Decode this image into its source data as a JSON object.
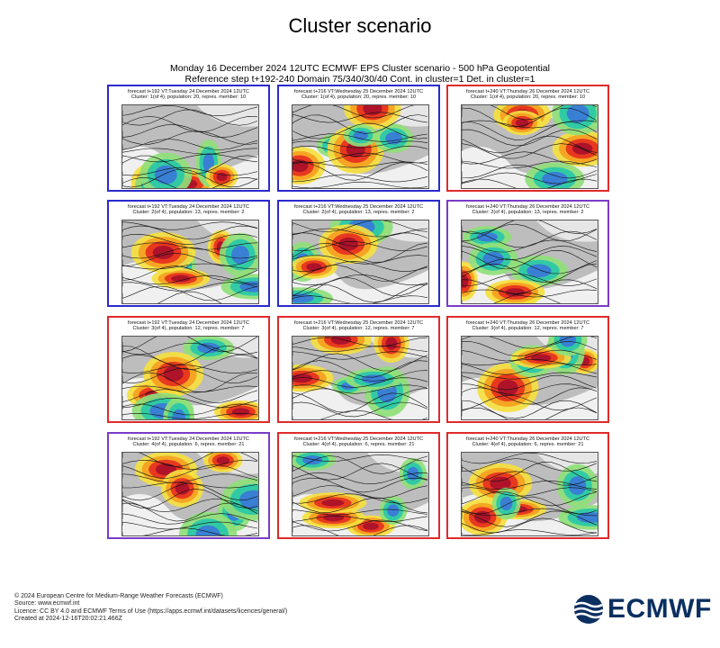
{
  "title": "Cluster scenario",
  "header": {
    "line1": "Monday 16 December 2024 12UTC ECMWF EPS Cluster scenario - 500 hPa Geopotential",
    "line2": "Reference step t+192-240 Domain 75/340/30/40 Cont. in cluster=1 Det. in cluster=1"
  },
  "colors": {
    "frame_blue": "#2a2ad0",
    "frame_red": "#e02a2a",
    "frame_purple": "#7a3cc8",
    "anomaly_strong_pos": "#a8102a",
    "anomaly_pos": "#e63020",
    "anomaly_weak_pos": "#f5a020",
    "anomaly_faint_pos": "#f5e040",
    "anomaly_faint_neg": "#8fe07a",
    "anomaly_neg": "#28c8a8",
    "anomaly_strong_neg": "#3a78d8",
    "land": "#9a9a9a"
  },
  "panels": [
    {
      "line1": "forecast t+192 VT:Tuesday 24 December 2024 12UTC",
      "line2": "Cluster: 1(of 4), population: 20, repres. member: 10",
      "frame": "blue"
    },
    {
      "line1": "forecast t+216 VT:Wednesday 25 December 2024 12UTC",
      "line2": "Cluster: 1(of 4), population: 20, repres. member: 10",
      "frame": "blue"
    },
    {
      "line1": "forecast t+240 VT:Thursday 26 December 2024 12UTC",
      "line2": "Cluster: 1(of 4), population: 20, repres. member: 10",
      "frame": "red"
    },
    {
      "line1": "forecast t+192 VT:Tuesday 24 December 2024 12UTC",
      "line2": "Cluster: 2(of 4), population: 13, repres. member: 2",
      "frame": "blue"
    },
    {
      "line1": "forecast t+216 VT:Wednesday 25 December 2024 12UTC",
      "line2": "Cluster: 2(of 4), population: 13, repres. member: 2",
      "frame": "blue"
    },
    {
      "line1": "forecast t+240 VT:Thursday 26 December 2024 12UTC",
      "line2": "Cluster: 2(of 4), population: 13, repres. member: 2",
      "frame": "purple"
    },
    {
      "line1": "forecast t+192 VT:Tuesday 24 December 2024 12UTC",
      "line2": "Cluster: 3(of 4), population: 12, repres. member: 7",
      "frame": "red"
    },
    {
      "line1": "forecast t+216 VT:Wednesday 25 December 2024 12UTC",
      "line2": "Cluster: 3(of 4), population: 12, repres. member: 7",
      "frame": "red"
    },
    {
      "line1": "forecast t+240 VT:Thursday 26 December 2024 12UTC",
      "line2": "Cluster: 3(of 4), population: 12, repres. member: 7",
      "frame": "red"
    },
    {
      "line1": "forecast t+192 VT:Tuesday 24 December 2024 12UTC",
      "line2": "Cluster: 4(of 4), population: 6, repres. member: 21",
      "frame": "purple"
    },
    {
      "line1": "forecast t+216 VT:Wednesday 25 December 2024 12UTC",
      "line2": "Cluster: 4(of 4), population: 6, repres. member: 21",
      "frame": "red"
    },
    {
      "line1": "forecast t+240 VT:Thursday 26 December 2024 12UTC",
      "line2": "Cluster: 4(of 4), population: 6, repres. member: 21",
      "frame": "red"
    }
  ],
  "footer": {
    "line1": "© 2024 European Centre for Medium-Range Weather Forecasts (ECMWF)",
    "line2": "Source: www.ecmwf.int",
    "line3": "Licence: CC BY 4.0 and ECMWF Terms of Use (https://apps.ecmwf.int/datasets/licences/general/)",
    "line4": "Created at 2024-12-16T20:02:21.466Z"
  },
  "logo": {
    "text": "ECMWF"
  }
}
